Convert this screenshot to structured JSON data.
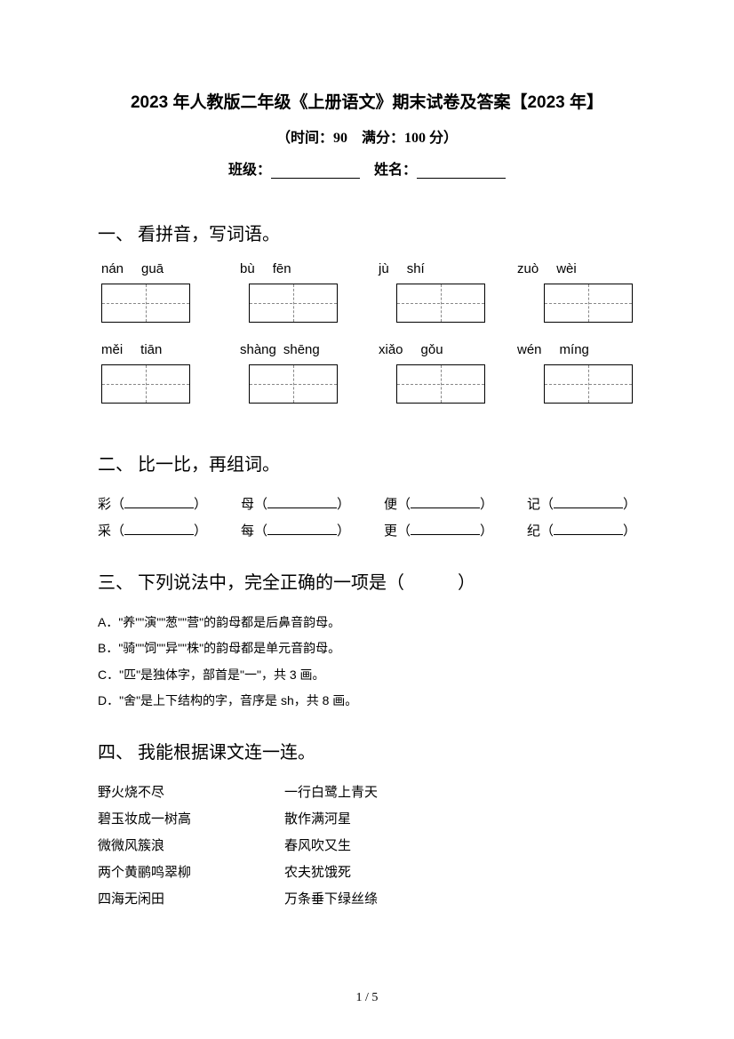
{
  "header": {
    "title": "2023 年人教版二年级《上册语文》期末试卷及答案【2023 年】",
    "subtitle": "（时间：90　满分：100 分）",
    "class_label": "班级：",
    "name_label": "姓名："
  },
  "q1": {
    "title": "一、 看拼音，写词语。",
    "row1": [
      {
        "p1": "nán",
        "p2": "guā"
      },
      {
        "p1": "bù",
        "p2": "fēn"
      },
      {
        "p1": "jù",
        "p2": "shí"
      },
      {
        "p1": "zuò",
        "p2": "wèi"
      }
    ],
    "row2": [
      {
        "p1": "měi",
        "p2": "tiān"
      },
      {
        "p1": "shàng",
        "p2": "shēng"
      },
      {
        "p1": "xiǎo",
        "p2": "gǒu"
      },
      {
        "p1": "wén",
        "p2": "míng"
      }
    ]
  },
  "q2": {
    "title": "二、 比一比，再组词。",
    "line1": [
      "彩",
      "母",
      "便",
      "记"
    ],
    "line2": [
      "采",
      "每",
      "更",
      "纪"
    ]
  },
  "q3": {
    "title": "三、 下列说法中，完全正确的一项是（　　　）",
    "options": [
      "A．\"养\"\"演\"\"葱\"\"营\"的韵母都是后鼻音韵母。",
      "B．\"骑\"\"饲\"\"异\"\"株\"的韵母都是单元音韵母。",
      "C．\"匹\"是独体字，部首是\"一\"，共 3 画。",
      "D．\"舍\"是上下结构的字，音序是 sh，共 8 画。"
    ]
  },
  "q4": {
    "title": "四、 我能根据课文连一连。",
    "pairs": [
      {
        "left": "野火烧不尽",
        "right": "一行白鹭上青天"
      },
      {
        "left": "碧玉妆成一树高",
        "right": "散作满河星"
      },
      {
        "left": "微微风簇浪",
        "right": "春风吹又生"
      },
      {
        "left": "两个黄鹂鸣翠柳",
        "right": "农夫犹饿死"
      },
      {
        "left": "四海无闲田",
        "right": "万条垂下绿丝绦"
      }
    ]
  },
  "footer": {
    "page": "1 / 5"
  }
}
